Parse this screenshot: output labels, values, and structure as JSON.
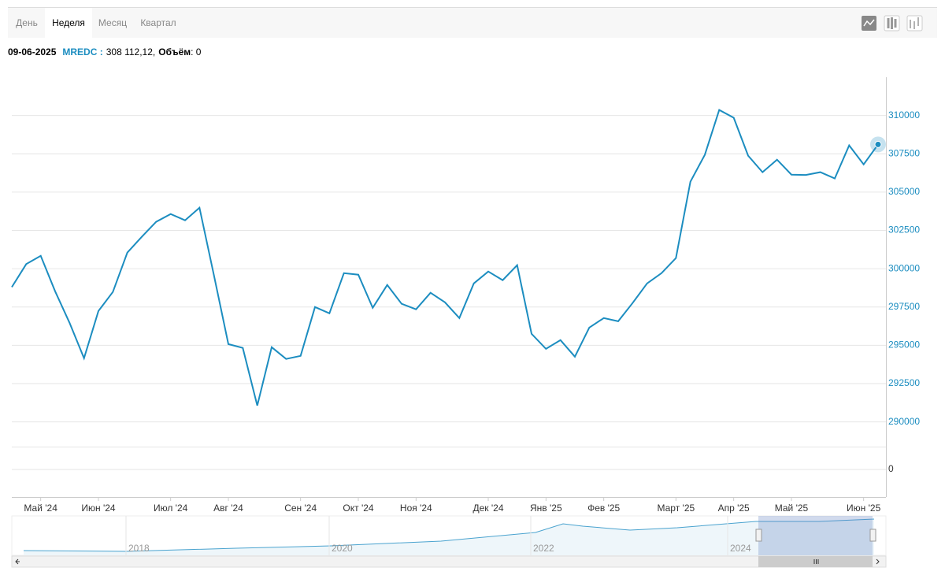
{
  "tabs": [
    "День",
    "Неделя",
    "Месяц",
    "Квартал"
  ],
  "active_tab": 1,
  "header": {
    "date": "09-06-2025",
    "series": "MREDC :",
    "value": "308 112,12,",
    "volume_label": "Объём",
    "volume": ": 0"
  },
  "chart_data": {
    "type": "line",
    "categories": [
      null,
      null,
      "Май '24",
      null,
      null,
      null,
      "Июн '24",
      null,
      null,
      null,
      null,
      "Июл '24",
      null,
      null,
      null,
      "Авг '24",
      null,
      null,
      null,
      null,
      "Сен '24",
      null,
      null,
      null,
      "Окт '24",
      null,
      null,
      null,
      "Ноя '24",
      null,
      null,
      null,
      null,
      "Дек '24",
      null,
      null,
      null,
      "Янв '25",
      null,
      null,
      null,
      "Фев '25",
      null,
      null,
      null,
      null,
      "Март '25",
      null,
      null,
      null,
      "Апр '25",
      null,
      null,
      null,
      "Май '25",
      null,
      null,
      null,
      null,
      "Июн '25",
      null
    ],
    "series": [
      {
        "name": "MREDC",
        "color": "#1c8dc0",
        "values": [
          298800,
          300300,
          300840,
          298530,
          296470,
          294160,
          297240,
          298480,
          301050,
          302080,
          303060,
          303570,
          303160,
          303980,
          299560,
          295080,
          294830,
          291070,
          294880,
          294110,
          294310,
          297500,
          297090,
          299710,
          299610,
          297450,
          298940,
          297710,
          297350,
          298430,
          297810,
          296780,
          299040,
          299820,
          299250,
          300230,
          295750,
          294770,
          295340,
          294260,
          296160,
          296780,
          296570,
          297760,
          299040,
          299710,
          300690,
          305680,
          307430,
          310360,
          309850,
          307380,
          306300,
          307120,
          306140,
          306120,
          306300,
          305890,
          308050,
          306810,
          308112.12
        ]
      }
    ],
    "ylim": [
      288750,
      312500
    ],
    "yticks": [
      290000,
      292500,
      295000,
      297500,
      300000,
      302500,
      305000,
      307500,
      310000
    ],
    "volume_yticks": [
      0
    ],
    "grid": true
  },
  "navigator": {
    "labels": [
      "2018",
      "2020",
      "2022",
      "2024"
    ]
  }
}
